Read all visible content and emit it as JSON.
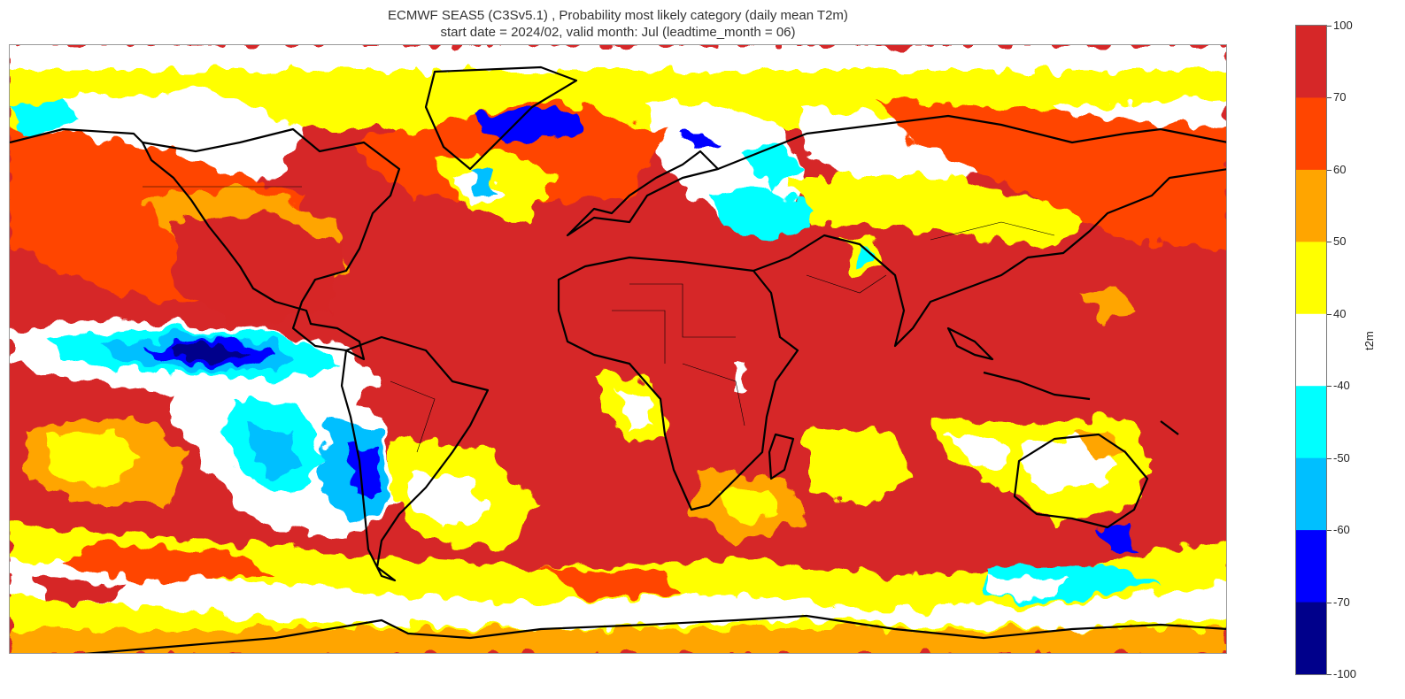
{
  "header": {
    "title_line1": "ECMWF SEAS5 (C3Sv5.1) , Probability most likely category (daily mean T2m)",
    "title_line2": "start date = 2024/02, valid month: Jul (leadtime_month = 06)"
  },
  "map": {
    "projection": "equirectangular",
    "lon_range": [
      -180,
      180
    ],
    "lat_range": [
      -90,
      90
    ],
    "variable": "t2m"
  },
  "colorbar": {
    "label": "t2m",
    "ticks": [
      "100",
      "70",
      "60",
      "50",
      "40",
      "-40",
      "-50",
      "-60",
      "-70",
      "-100"
    ],
    "bins": [
      {
        "from": 70,
        "to": 100,
        "color": "#d62728"
      },
      {
        "from": 60,
        "to": 70,
        "color": "#ff4500"
      },
      {
        "from": 50,
        "to": 60,
        "color": "#ffa500"
      },
      {
        "from": 40,
        "to": 50,
        "color": "#ffff00"
      },
      {
        "from": -40,
        "to": 40,
        "color": "#ffffff"
      },
      {
        "from": -50,
        "to": -40,
        "color": "#00ffff"
      },
      {
        "from": -60,
        "to": -50,
        "color": "#00bfff"
      },
      {
        "from": -70,
        "to": -60,
        "color": "#0000ff"
      },
      {
        "from": -100,
        "to": -70,
        "color": "#00008b"
      }
    ]
  }
}
